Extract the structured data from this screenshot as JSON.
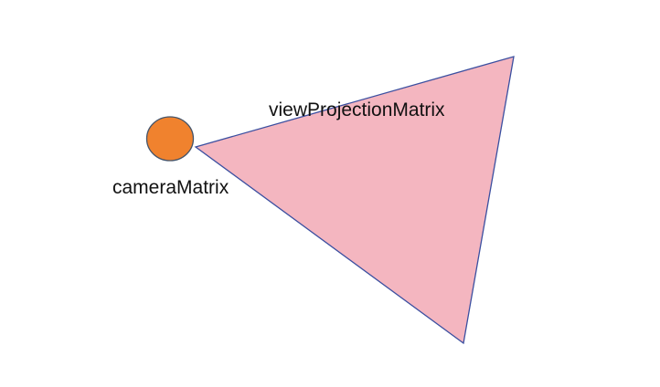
{
  "diagram": {
    "labels": {
      "camera": "cameraMatrix",
      "frustum": "viewProjectionMatrix"
    },
    "colors": {
      "camera_fill": "#f0822e",
      "camera_stroke": "#44546a",
      "frustum_fill": "#f4b6c0",
      "frustum_stroke": "#3b4fa0",
      "background": "#ffffff"
    }
  }
}
